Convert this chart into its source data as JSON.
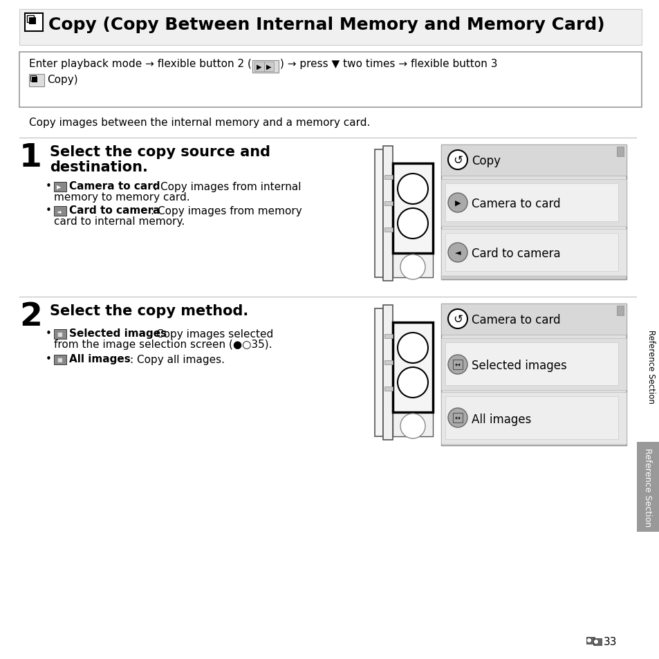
{
  "bg_color": "#ffffff",
  "title_text": "Copy (Copy Between Internal Memory and Memory Card)",
  "nav_line1": "Enter playback mode → flexible button 2 (",
  "nav_line1b": ") → press ▼ two times → flexible button 3",
  "nav_line2": "Copy)",
  "intro": "Copy images between the internal memory and a memory card.",
  "step1_num": "1",
  "step1_head": "Select the copy source and\ndestination.",
  "step1_b1_bold": "Camera to card",
  "step1_b1_text": ": Copy images from internal\nmemory to memory card.",
  "step1_b2_bold": "Card to camera",
  "step1_b2_text": ": Copy images from memory\ncard to internal memory.",
  "step2_num": "2",
  "step2_head": "Select the copy method.",
  "step2_b1_bold": "Selected images",
  "step2_b1_text": ": Copy images selected\nfrom the image selection screen (",
  "step2_b1_text2": "35).",
  "step2_b2_bold": "All images",
  "step2_b2_text": ": Copy all images.",
  "menu1_title": "Copy",
  "menu1_item1": "Camera to card",
  "menu1_item2": "Card to camera",
  "menu2_title": "Camera to card",
  "menu2_item1": "Selected images",
  "menu2_item2": "All images",
  "sidebar": "Reference Section",
  "pagenum": "33",
  "light_gray": "#e8e8e8",
  "mid_gray": "#cccccc",
  "dark_gray": "#888888",
  "border_color": "#999999",
  "menu_bg": "#e0e0e0",
  "menu_header_bg": "#d8d8d8",
  "menu_item_bg": "#ebebeb",
  "menu_item_sel": "#d0d0d0",
  "icon_bg": "#aaaaaa"
}
